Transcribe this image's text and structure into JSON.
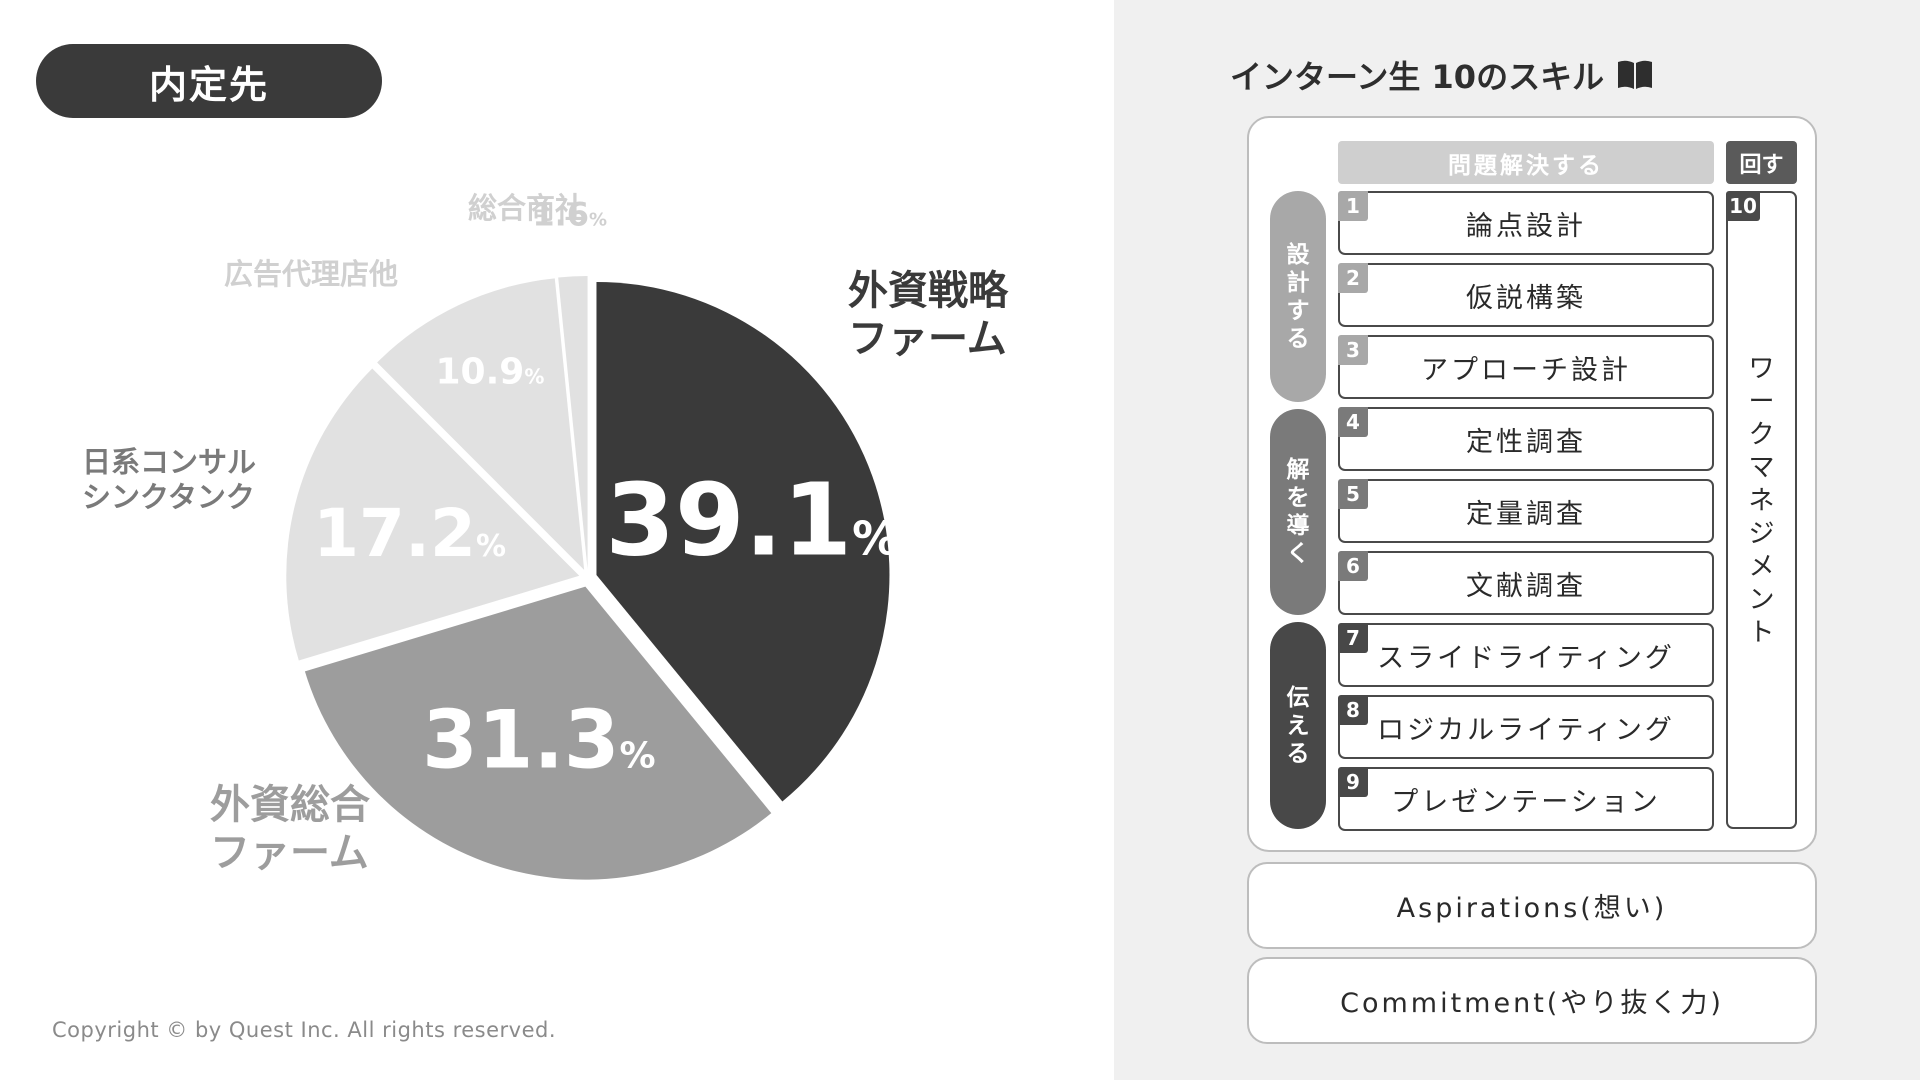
{
  "header": {
    "title": "内定先"
  },
  "chart_data": {
    "type": "pie",
    "categories": [
      "外資戦略ファーム",
      "外資総合ファーム",
      "日系コンサルシンクタンク",
      "広告代理店他",
      "総合商社"
    ],
    "values": [
      39.1,
      31.3,
      17.2,
      10.9,
      1.6
    ],
    "unit": "%",
    "colors": [
      "#3a3a3a",
      "#9d9d9d",
      "#e1e1e1",
      "#e1e1e1",
      "#e1e1e1"
    ],
    "slices": [
      {
        "value_text": "39.1",
        "pct": "%",
        "label_lines": [
          "外資戦略",
          "ファーム"
        ],
        "label_color": "#3a3a3a",
        "value_color": "#ffffff"
      },
      {
        "value_text": "31.3",
        "pct": "%",
        "label_lines": [
          "外資総合",
          "ファーム"
        ],
        "label_color": "#9d9d9d",
        "value_color": "#ffffff"
      },
      {
        "value_text": "17.2",
        "pct": "%",
        "label_lines": [
          "日系コンサル",
          "シンクタンク"
        ],
        "label_color": "#7a7a7a",
        "value_color": "#ffffff"
      },
      {
        "value_text": "10.9",
        "pct": "%",
        "label_lines": [
          "広告代理店他"
        ],
        "label_color": "#d0d0d0",
        "value_color": "#ffffff"
      },
      {
        "value_text": "1.6",
        "pct": "%",
        "label_lines": [
          "総合商社"
        ],
        "label_color": "#d0d0d0",
        "value_color": "#d0d0d0"
      }
    ]
  },
  "copyright": "Copyright © by Quest Inc. All rights reserved.",
  "skills": {
    "title": "インターン生 10のスキル",
    "book_icon": "book-icon",
    "header_main": "問題解決する",
    "header_side": "回す",
    "phases": [
      {
        "label": "設計する",
        "color": "#a8a8a8"
      },
      {
        "label": "解を導く",
        "color": "#7a7a7a"
      },
      {
        "label": "伝える",
        "color": "#484848"
      }
    ],
    "items": [
      {
        "num": "1",
        "label": "論点設計",
        "badge": "#a8a8a8"
      },
      {
        "num": "2",
        "label": "仮説構築",
        "badge": "#a8a8a8"
      },
      {
        "num": "3",
        "label": "アプローチ設計",
        "badge": "#a8a8a8"
      },
      {
        "num": "4",
        "label": "定性調査",
        "badge": "#7a7a7a"
      },
      {
        "num": "5",
        "label": "定量調査",
        "badge": "#7a7a7a"
      },
      {
        "num": "6",
        "label": "文献調査",
        "badge": "#7a7a7a"
      },
      {
        "num": "7",
        "label": "スライドライティング",
        "badge": "#484848"
      },
      {
        "num": "8",
        "label": "ロジカルライティング",
        "badge": "#484848"
      },
      {
        "num": "9",
        "label": "プレゼンテーション",
        "badge": "#484848"
      }
    ],
    "work": {
      "num": "10",
      "label": "ワークマネジメント"
    },
    "aspirations": "Aspirations(想い)",
    "commitment": "Commitment(やり抜く力)"
  }
}
